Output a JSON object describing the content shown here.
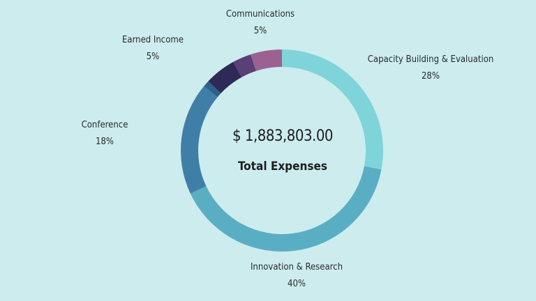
{
  "center": {
    "amount": "$ 1,883,803.00",
    "caption": "Total Expenses"
  },
  "chart_data": {
    "type": "pie",
    "subtype": "donut",
    "slices": [
      {
        "label": "Capacity Building & Evaluation",
        "percent_label": "28%",
        "value": 28,
        "color": "#7fd4da"
      },
      {
        "label": "Innovation & Research",
        "percent_label": "40%",
        "value": 40,
        "color": "#5aaec4"
      },
      {
        "label": "Conference",
        "percent_label": "18%",
        "value": 18,
        "color": "#3f7fa7"
      },
      {
        "label": "",
        "percent_label": "",
        "value": 1,
        "color": "#2f5f8c"
      },
      {
        "label": "Earned Income",
        "percent_label": "5%",
        "value": 5,
        "color": "#2d2a57"
      },
      {
        "label": "",
        "percent_label": "",
        "value": 3,
        "color": "#5b3f77"
      },
      {
        "label": "Communications",
        "percent_label": "5%",
        "value": 5,
        "color": "#9b6291"
      }
    ]
  }
}
